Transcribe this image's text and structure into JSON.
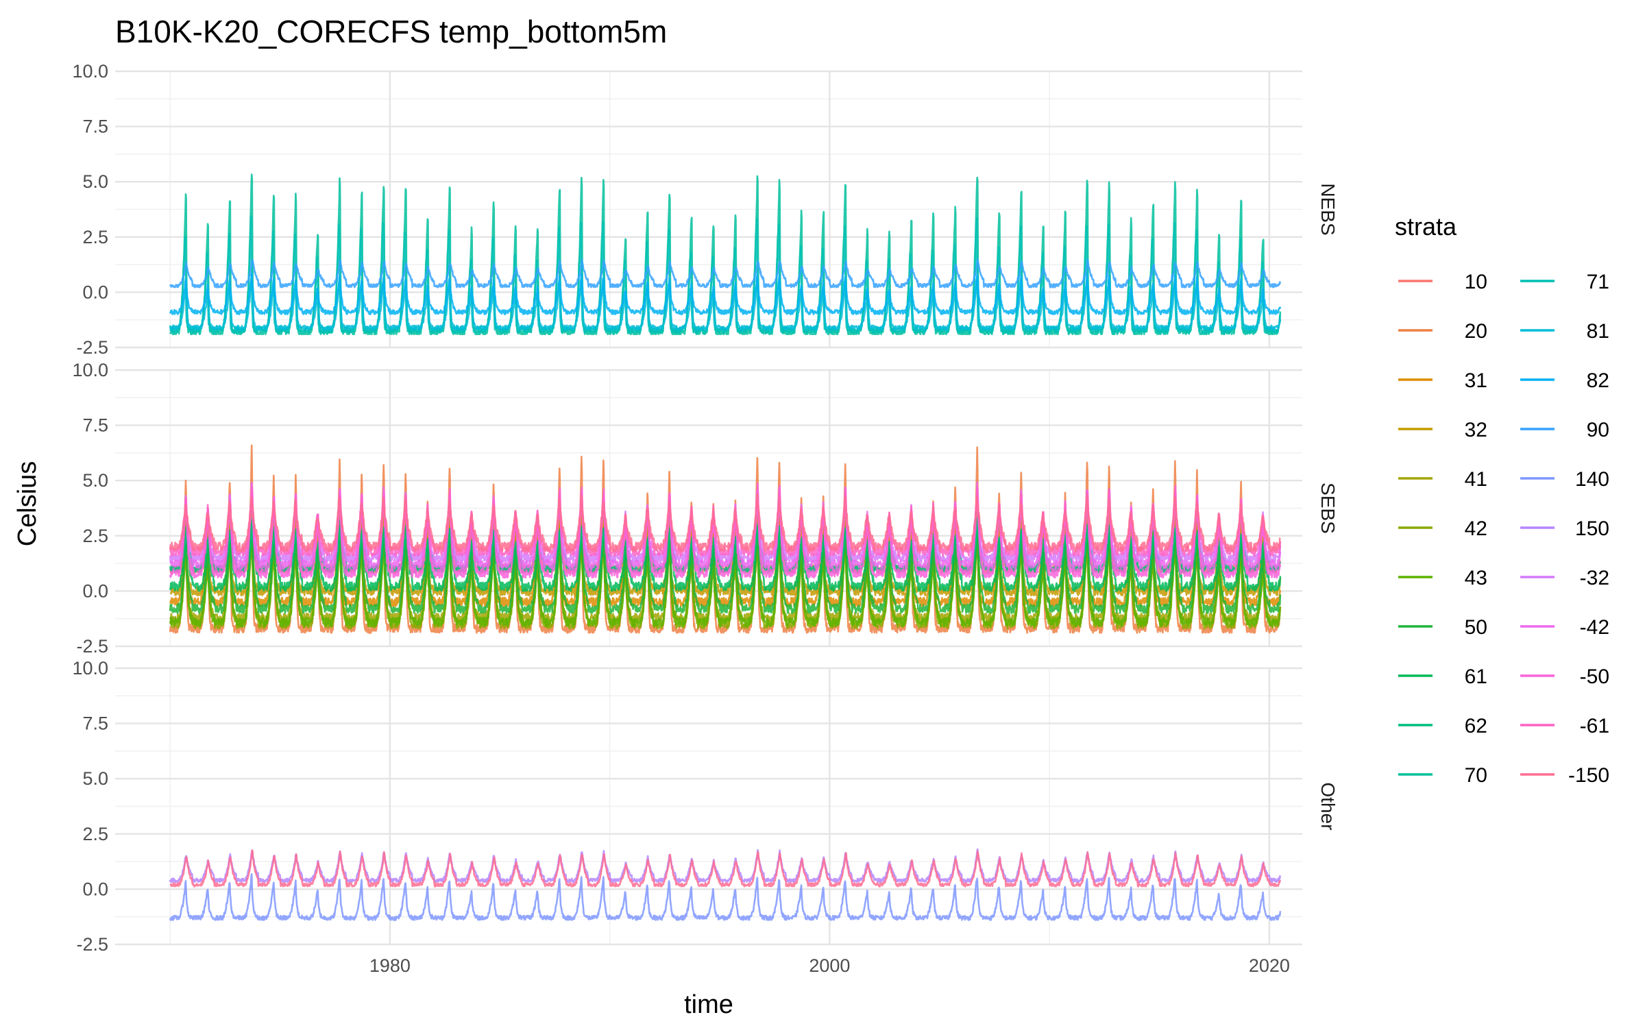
{
  "chart_data": {
    "type": "line",
    "title": "B10K-K20_CORECFS temp_bottom5m",
    "xlabel": "time",
    "ylabel": "Celsius",
    "xlim": [
      1967.5,
      2021.5
    ],
    "ylim": [
      -2.5,
      10.0
    ],
    "x_ticks": [
      1980,
      2000,
      2020
    ],
    "y_ticks": [
      -2.5,
      0.0,
      2.5,
      5.0,
      7.5,
      10.0
    ],
    "y_tick_labels": [
      "-2.5",
      "0.0",
      "2.5",
      "5.0",
      "7.5",
      "10.0"
    ],
    "x_range_data": [
      1970.0,
      2020.5
    ],
    "grid": true,
    "legend_position": "right",
    "legend": {
      "title": "strata",
      "entries": [
        {
          "label": "10",
          "color": "#F8766D"
        },
        {
          "label": "20",
          "color": "#EE8044"
        },
        {
          "label": "31",
          "color": "#DE8C00"
        },
        {
          "label": "32",
          "color": "#C49A00"
        },
        {
          "label": "41",
          "color": "#A3A500"
        },
        {
          "label": "42",
          "color": "#8AAB00"
        },
        {
          "label": "43",
          "color": "#5EB300"
        },
        {
          "label": "50",
          "color": "#1FB53A"
        },
        {
          "label": "61",
          "color": "#00BA5A"
        },
        {
          "label": "62",
          "color": "#00BD7E"
        },
        {
          "label": "70",
          "color": "#00BF9C"
        },
        {
          "label": "71",
          "color": "#00BFB5"
        },
        {
          "label": "81",
          "color": "#00BCD8"
        },
        {
          "label": "82",
          "color": "#00B2F3"
        },
        {
          "label": "90",
          "color": "#35A2FF"
        },
        {
          "label": "140",
          "color": "#7F96FF"
        },
        {
          "label": "150",
          "color": "#B385FF"
        },
        {
          "label": "-32",
          "color": "#D57AFB"
        },
        {
          "label": "-42",
          "color": "#EC69EF"
        },
        {
          "label": "-50",
          "color": "#FA62DB"
        },
        {
          "label": "-61",
          "color": "#FF61C3"
        },
        {
          "label": "-150",
          "color": "#FF6C91"
        }
      ]
    },
    "facets": [
      {
        "name": "NEBS",
        "series": [
          {
            "name": "70",
            "color": "#00BF9C",
            "base": -1.8,
            "amp": 8.0,
            "decay": 0.25,
            "jitter": 0.18
          },
          {
            "name": "71",
            "color": "#00BFB5",
            "base": -1.7,
            "amp": 5.4,
            "decay": 0.2,
            "jitter": 0.15
          },
          {
            "name": "81",
            "color": "#00BCD8",
            "base": -1.6,
            "amp": 2.6,
            "decay": 0.45,
            "jitter": 0.1
          },
          {
            "name": "82",
            "color": "#00B2F3",
            "base": -0.9,
            "amp": 1.8,
            "decay": 0.9,
            "jitter": 0.1
          },
          {
            "name": "90",
            "color": "#35A2FF",
            "base": 0.3,
            "amp": 1.2,
            "decay": 2.0,
            "jitter": 0.08
          }
        ]
      },
      {
        "name": "SEBS",
        "series": [
          {
            "name": "10",
            "color": "#F8766D",
            "base": 1.0,
            "amp": 3.2,
            "decay": 0.9,
            "jitter": 0.2
          },
          {
            "name": "20",
            "color": "#EE8044",
            "base": -1.7,
            "amp": 8.8,
            "decay": 0.35,
            "jitter": 0.2
          },
          {
            "name": "31",
            "color": "#DE8C00",
            "base": -0.5,
            "amp": 5.2,
            "decay": 0.6,
            "jitter": 0.2
          },
          {
            "name": "32",
            "color": "#C49A00",
            "base": 0.0,
            "amp": 4.0,
            "decay": 0.7,
            "jitter": 0.2
          },
          {
            "name": "41",
            "color": "#A3A500",
            "base": -1.2,
            "amp": 4.4,
            "decay": 0.8,
            "jitter": 0.2
          },
          {
            "name": "42",
            "color": "#8AAB00",
            "base": -1.5,
            "amp": 4.6,
            "decay": 0.9,
            "jitter": 0.2
          },
          {
            "name": "43",
            "color": "#5EB300",
            "base": -1.4,
            "amp": 4.2,
            "decay": 1.0,
            "jitter": 0.2
          },
          {
            "name": "50",
            "color": "#1FB53A",
            "base": -0.8,
            "amp": 4.0,
            "decay": 1.2,
            "jitter": 0.2
          },
          {
            "name": "61",
            "color": "#00BA5A",
            "base": 0.2,
            "amp": 3.0,
            "decay": 1.5,
            "jitter": 0.2
          },
          {
            "name": "62",
            "color": "#00BD7E",
            "base": 1.0,
            "amp": 2.0,
            "decay": 2.0,
            "jitter": 0.15
          },
          {
            "name": "-32",
            "color": "#D57AFB",
            "base": 1.5,
            "amp": 3.2,
            "decay": 1.1,
            "jitter": 0.2
          },
          {
            "name": "-42",
            "color": "#EC69EF",
            "base": 1.2,
            "amp": 3.8,
            "decay": 0.9,
            "jitter": 0.2
          },
          {
            "name": "-50",
            "color": "#FA62DB",
            "base": 0.8,
            "amp": 4.2,
            "decay": 0.8,
            "jitter": 0.2
          },
          {
            "name": "-61",
            "color": "#FF61C3",
            "base": 1.8,
            "amp": 2.8,
            "decay": 1.3,
            "jitter": 0.2
          },
          {
            "name": "-150",
            "color": "#FF6C91",
            "base": 2.0,
            "amp": 2.4,
            "decay": 1.6,
            "jitter": 0.2
          }
        ]
      },
      {
        "name": "Other",
        "series": [
          {
            "name": "140",
            "color": "#7F96FF",
            "base": -1.3,
            "amp": 2.0,
            "decay": 0.6,
            "jitter": 0.1
          },
          {
            "name": "150",
            "color": "#B385FF",
            "base": 0.4,
            "amp": 1.4,
            "decay": 1.8,
            "jitter": 0.08
          },
          {
            "name": "-150",
            "color": "#FF6C91",
            "base": 0.2,
            "amp": 1.6,
            "decay": 1.6,
            "jitter": 0.08
          }
        ]
      }
    ]
  }
}
